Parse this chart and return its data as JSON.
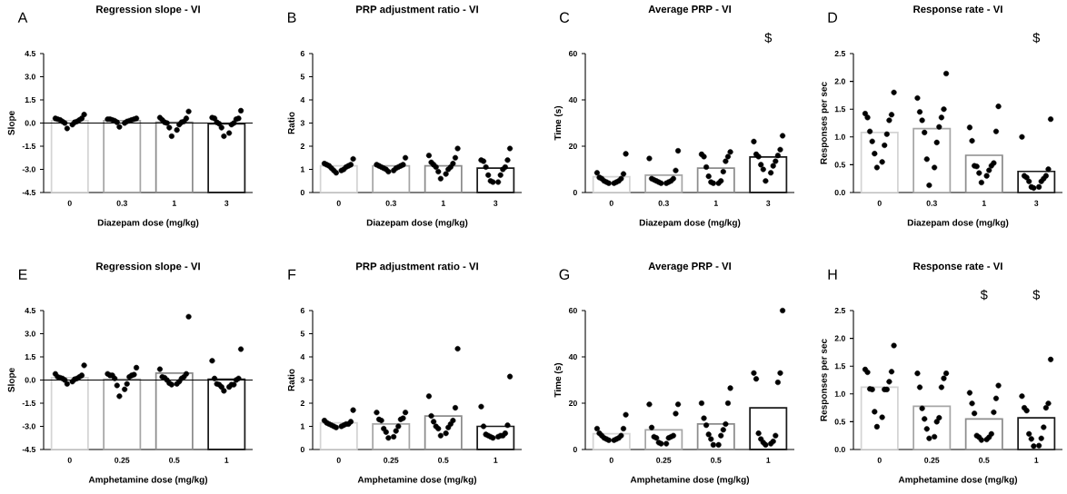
{
  "chart_data": [
    {
      "type": "bar",
      "title": "Regression slope - VI",
      "xlabel": "Diazepam dose (mg/kg)",
      "ylabel": "Slope",
      "categories": [
        "0",
        "0.3",
        "1",
        "3"
      ],
      "ylim": [
        -4.5,
        4.5
      ],
      "yticks": [
        {
          "value": -4.5,
          "label": "-4.5"
        },
        {
          "value": -3,
          "label": "-3.0"
        },
        {
          "value": -1.5,
          "label": "-1.5"
        },
        {
          "value": 0,
          "label": "0.0"
        },
        {
          "value": 1.5,
          "label": "1.5"
        },
        {
          "value": 3,
          "label": "3.0"
        },
        {
          "value": 4.5,
          "label": "4.5"
        }
      ],
      "marker": "circle",
      "annotations": [
        "A"
      ],
      "ref_lines": [
        {
          "axis": "y",
          "value": 0
        }
      ],
      "series": [
        {
          "colors": [
            "#d4d4d4",
            "#a6a6a6",
            "#8c8c8c",
            "#1a1a1a"
          ],
          "base": [
            -4.5,
            -4.5,
            -4.5,
            -4.5
          ],
          "values": [
            4.65,
            4.65,
            4.55,
            4.45
          ]
        },
        {
          "type": "scatter",
          "color": "#000000",
          "x": [
            "0",
            "0",
            "0",
            "0",
            "0",
            "0",
            "0",
            "0",
            "0",
            "0",
            "0",
            "0",
            "0.3",
            "0.3",
            "0.3",
            "0.3",
            "0.3",
            "0.3",
            "0.3",
            "0.3",
            "0.3",
            "0.3",
            "0.3",
            "0.3",
            "1",
            "1",
            "1",
            "1",
            "1",
            "1",
            "1",
            "1",
            "1",
            "1",
            "1",
            "1",
            "3",
            "3",
            "3",
            "3",
            "3",
            "3",
            "3",
            "3",
            "3",
            "3",
            "3",
            "3"
          ],
          "values": [
            0.55,
            0.3,
            0.2,
            0.05,
            0.0,
            -0.35,
            -0.1,
            0.1,
            0.25,
            0.3,
            0.2,
            0.1,
            0.2,
            0.15,
            0.25,
            0.05,
            -0.25,
            0.1,
            0.0,
            0.3,
            0.2,
            0.25,
            0.15,
            0.25,
            0.75,
            0.1,
            0.05,
            0.0,
            -0.85,
            -0.3,
            0.3,
            -0.45,
            -0.1,
            0.35,
            0.2,
            0.05,
            0.3,
            0.05,
            -0.1,
            0.35,
            -0.85,
            -0.3,
            -0.05,
            0.8,
            -0.65,
            0.3,
            0.25,
            0.0
          ]
        }
      ]
    },
    {
      "type": "bar",
      "title": "PRP adjustment ratio - VI",
      "xlabel": "Diazepam dose (mg/kg)",
      "ylabel": "Ratio",
      "categories": [
        "0",
        "0.3",
        "1",
        "3"
      ],
      "ylim": [
        0,
        6
      ],
      "yticks": [
        0,
        1,
        2,
        3,
        4,
        5,
        6
      ],
      "marker": "circle",
      "annotations": [
        "B"
      ],
      "series": [
        {
          "colors": [
            "#d4d4d4",
            "#a6a6a6",
            "#8c8c8c",
            "#1a1a1a"
          ],
          "values": [
            1.15,
            1.15,
            1.15,
            1.05
          ]
        },
        {
          "type": "scatter",
          "color": "#000000",
          "x": [
            "0",
            "0",
            "0",
            "0",
            "0",
            "0",
            "0",
            "0",
            "0",
            "0",
            "0",
            "0",
            "0.3",
            "0.3",
            "0.3",
            "0.3",
            "0.3",
            "0.3",
            "0.3",
            "0.3",
            "0.3",
            "0.3",
            "0.3",
            "0.3",
            "1",
            "1",
            "1",
            "1",
            "1",
            "1",
            "1",
            "1",
            "1",
            "1",
            "1",
            "1",
            "3",
            "3",
            "3",
            "3",
            "3",
            "3",
            "3",
            "3",
            "3",
            "3",
            "3",
            "3"
          ],
          "values": [
            1.15,
            1.25,
            1.05,
            0.95,
            0.85,
            1.2,
            0.95,
            1.45,
            1.2,
            1.1,
            1.15,
            1.0,
            1.2,
            1.15,
            1.05,
            0.95,
            0.9,
            1.5,
            1.05,
            1.1,
            1.0,
            1.15,
            1.2,
            1.1,
            1.9,
            1.1,
            0.8,
            1.0,
            0.6,
            1.5,
            1.25,
            1.6,
            1.3,
            1.2,
            0.9,
            1.1,
            1.4,
            0.75,
            0.45,
            1.9,
            1.1,
            0.45,
            1.35,
            1.0,
            0.75,
            1.4,
            0.5,
            1.1
          ]
        }
      ]
    },
    {
      "type": "bar",
      "title": "Average PRP - VI",
      "xlabel": "Diazepam dose (mg/kg)",
      "ylabel": "Time (s)",
      "categories": [
        "0",
        "0.3",
        "1",
        "3"
      ],
      "ylim": [
        0,
        60
      ],
      "yticks": [
        0,
        20,
        40,
        60
      ],
      "marker": "circle",
      "annotations": [
        "C",
        "$"
      ],
      "series": [
        {
          "colors": [
            "#d4d4d4",
            "#a6a6a6",
            "#8c8c8c",
            "#1a1a1a"
          ],
          "values": [
            6.8,
            7.5,
            10.5,
            15.3
          ]
        },
        {
          "type": "scatter",
          "color": "#000000",
          "x": [
            "0",
            "0",
            "0",
            "0",
            "0",
            "0",
            "0",
            "0",
            "0",
            "0",
            "0",
            "0",
            "0.3",
            "0.3",
            "0.3",
            "0.3",
            "0.3",
            "0.3",
            "0.3",
            "0.3",
            "0.3",
            "0.3",
            "0.3",
            "0.3",
            "1",
            "1",
            "1",
            "1",
            "1",
            "1",
            "1",
            "1",
            "1",
            "1",
            "1",
            "1",
            "3",
            "3",
            "3",
            "3",
            "3",
            "3",
            "3",
            "3",
            "3",
            "3",
            "3",
            "3"
          ],
          "values": [
            6,
            8.5,
            5,
            4.5,
            16.7,
            4,
            4,
            4.5,
            8,
            5,
            6,
            6.5,
            6,
            14.7,
            5,
            4.5,
            4,
            9.5,
            4,
            4.5,
            5,
            18,
            5.5,
            6,
            7,
            15.5,
            5,
            4,
            13.5,
            17.5,
            4,
            4.5,
            15.5,
            9,
            16.5,
            11,
            12,
            22,
            8.5,
            16.5,
            5,
            24.5,
            10,
            13.5,
            18.5,
            11.5,
            16,
            15.5
          ]
        }
      ]
    },
    {
      "type": "bar",
      "title": "Response rate - VI",
      "xlabel": "Diazepam dose (mg/kg)",
      "ylabel": "Responses per sec",
      "categories": [
        "0",
        "0.3",
        "1",
        "3"
      ],
      "ylim": [
        0,
        2.5
      ],
      "yticks": [
        {
          "value": 0,
          "label": "0.0"
        },
        {
          "value": 0.5,
          "label": "0.5"
        },
        {
          "value": 1,
          "label": "1.0"
        },
        {
          "value": 1.5,
          "label": "1.5"
        },
        {
          "value": 2,
          "label": "2.0"
        },
        {
          "value": 2.5,
          "label": "2.5"
        }
      ],
      "marker": "circle",
      "annotations": [
        "D",
        "$"
      ],
      "series": [
        {
          "colors": [
            "#d4d4d4",
            "#a6a6a6",
            "#8c8c8c",
            "#1a1a1a"
          ],
          "values": [
            1.08,
            1.15,
            0.67,
            0.38
          ]
        },
        {
          "type": "scatter",
          "color": "#000000",
          "x": [
            "0",
            "0",
            "0",
            "0",
            "0",
            "0",
            "0",
            "0",
            "0",
            "0",
            "0",
            "0",
            "0.3",
            "0.3",
            "0.3",
            "0.3",
            "0.3",
            "0.3",
            "0.3",
            "0.3",
            "0.3",
            "0.3",
            "0.3",
            "0.3",
            "1",
            "1",
            "1",
            "1",
            "1",
            "1",
            "1",
            "1",
            "1",
            "1",
            "1",
            "1",
            "3",
            "3",
            "3",
            "3",
            "3",
            "3",
            "3",
            "3",
            "3",
            "3",
            "3",
            "3"
          ],
          "values": [
            1.4,
            0.45,
            1.1,
            1.3,
            0.85,
            0.55,
            1.8,
            0.7,
            0.92,
            1.35,
            1.05,
            1.42,
            1.3,
            1.18,
            1.5,
            0.6,
            0.13,
            2.14,
            1.7,
            0.45,
            1.08,
            0.9,
            1.35,
            1.45,
            0.48,
            0.4,
            0.18,
            1.1,
            0.35,
            1.55,
            0.93,
            0.3,
            0.53,
            1.17,
            0.48,
            0.47,
            0.42,
            0.3,
            0.2,
            0.1,
            0.08,
            1.32,
            1.0,
            0.1,
            0.27,
            0.3,
            0.25,
            0.2
          ]
        }
      ]
    },
    {
      "type": "bar",
      "title": "Regression slope - VI",
      "xlabel": "Amphetamine dose (mg/kg)",
      "ylabel": "Slope",
      "categories": [
        "0",
        "0.25",
        "0.5",
        "1"
      ],
      "ylim": [
        -4.5,
        4.5
      ],
      "yticks": [
        {
          "value": -4.5,
          "label": "-4.5"
        },
        {
          "value": -3,
          "label": "-3.0"
        },
        {
          "value": -1.5,
          "label": "-1.5"
        },
        {
          "value": 0,
          "label": "0.0"
        },
        {
          "value": 1.5,
          "label": "1.5"
        },
        {
          "value": 3,
          "label": "3.0"
        },
        {
          "value": 4.5,
          "label": "4.5"
        }
      ],
      "marker": "circle",
      "annotations": [
        "E"
      ],
      "ref_lines": [
        {
          "axis": "y",
          "value": 0
        }
      ],
      "series": [
        {
          "colors": [
            "#d4d4d4",
            "#a6a6a6",
            "#8c8c8c",
            "#1a1a1a"
          ],
          "base": [
            -4.5,
            -4.5,
            -4.5,
            -4.5
          ],
          "values": [
            4.65,
            4.55,
            4.95,
            4.55
          ]
        },
        {
          "type": "scatter",
          "color": "#000000",
          "x": [
            "0",
            "0",
            "0",
            "0",
            "0",
            "0",
            "0",
            "0",
            "0",
            "0",
            "0",
            "0",
            "0.25",
            "0.25",
            "0.25",
            "0.25",
            "0.25",
            "0.25",
            "0.25",
            "0.25",
            "0.25",
            "0.25",
            "0.25",
            "0.25",
            "0.5",
            "0.5",
            "0.5",
            "0.5",
            "0.5",
            "0.5",
            "0.5",
            "0.5",
            "0.5",
            "0.5",
            "0.5",
            "0.5",
            "1",
            "1",
            "1",
            "1",
            "1",
            "1",
            "1",
            "1",
            "1",
            "1",
            "1",
            "1"
          ],
          "values": [
            0.1,
            0.05,
            0.2,
            0.0,
            0.95,
            -0.25,
            -0.1,
            0.15,
            0.3,
            0.4,
            0.2,
            0.1,
            0.4,
            0.3,
            0.2,
            -0.25,
            0.3,
            -1.05,
            0.1,
            -0.6,
            0.3,
            -0.35,
            0.35,
            0.8,
            0.2,
            0.1,
            0.0,
            -0.1,
            -0.25,
            0.7,
            4.1,
            -0.3,
            -0.2,
            0.4,
            0.15,
            0.2,
            -0.3,
            -0.45,
            0.1,
            -0.25,
            1.25,
            -0.7,
            2.0,
            -0.3,
            -0.45,
            0.1,
            -0.3,
            0.0
          ]
        }
      ]
    },
    {
      "type": "bar",
      "title": "PRP adjustment ratio - VI",
      "xlabel": "Amphetamine dose (mg/kg)",
      "ylabel": "Ratio",
      "categories": [
        "0",
        "0.25",
        "0.5",
        "1"
      ],
      "ylim": [
        0,
        6
      ],
      "yticks": [
        0,
        1,
        2,
        3,
        4,
        5,
        6
      ],
      "marker": "circle",
      "annotations": [
        "F"
      ],
      "series": [
        {
          "colors": [
            "#d4d4d4",
            "#a6a6a6",
            "#8c8c8c",
            "#1a1a1a"
          ],
          "values": [
            1.15,
            1.1,
            1.45,
            1.0
          ]
        },
        {
          "type": "scatter",
          "color": "#000000",
          "x": [
            "0",
            "0",
            "0",
            "0",
            "0",
            "0",
            "0",
            "0",
            "0",
            "0",
            "0",
            "0",
            "0.25",
            "0.25",
            "0.25",
            "0.25",
            "0.25",
            "0.25",
            "0.25",
            "0.25",
            "0.25",
            "0.25",
            "0.25",
            "0.25",
            "0.5",
            "0.5",
            "0.5",
            "0.5",
            "0.5",
            "0.5",
            "0.5",
            "0.5",
            "0.5",
            "0.5",
            "0.5",
            "0.5",
            "1",
            "1",
            "1",
            "1",
            "1",
            "1",
            "1",
            "1",
            "1",
            "1",
            "1",
            "1"
          ],
          "values": [
            1.1,
            1.05,
            1.0,
            0.95,
            1.2,
            1.7,
            1.25,
            1.1,
            1.05,
            1.15,
            1.1,
            1.0,
            1.6,
            0.75,
            1.3,
            0.5,
            1.0,
            1.3,
            0.55,
            0.9,
            1.35,
            1.25,
            1.6,
            0.8,
            1.0,
            1.2,
            0.7,
            0.6,
            1.45,
            4.35,
            1.8,
            2.3,
            0.95,
            1.25,
            0.9,
            1.1,
            0.6,
            0.55,
            0.5,
            1.05,
            1.85,
            3.15,
            0.7,
            0.55,
            1.0,
            0.6,
            0.6,
            0.65
          ]
        }
      ]
    },
    {
      "type": "bar",
      "title": "Average PRP - VI",
      "xlabel": "Amphetamine dose (mg/kg)",
      "ylabel": "Time (s)",
      "categories": [
        "0",
        "0.25",
        "0.5",
        "1"
      ],
      "ylim": [
        0,
        60
      ],
      "yticks": [
        0,
        20,
        40,
        60
      ],
      "marker": "circle",
      "annotations": [
        "G"
      ],
      "series": [
        {
          "colors": [
            "#d4d4d4",
            "#a6a6a6",
            "#8c8c8c",
            "#1a1a1a"
          ],
          "values": [
            6.8,
            8.5,
            11,
            18
          ]
        },
        {
          "type": "scatter",
          "color": "#000000",
          "x": [
            "0",
            "0",
            "0",
            "0",
            "0",
            "0",
            "0",
            "0",
            "0",
            "0",
            "0",
            "0",
            "0.25",
            "0.25",
            "0.25",
            "0.25",
            "0.25",
            "0.25",
            "0.25",
            "0.25",
            "0.25",
            "0.25",
            "0.25",
            "0.25",
            "0.5",
            "0.5",
            "0.5",
            "0.5",
            "0.5",
            "0.5",
            "0.5",
            "0.5",
            "0.5",
            "0.5",
            "0.5",
            "0.5",
            "1",
            "1",
            "1",
            "1",
            "1",
            "1",
            "1",
            "1",
            "1",
            "1",
            "1",
            "1"
          ],
          "values": [
            7,
            6,
            5,
            9,
            4.5,
            4,
            15,
            4,
            4.5,
            9,
            5,
            6,
            6,
            5.5,
            5,
            19.5,
            3,
            9.5,
            2.5,
            15.5,
            2.5,
            19.5,
            5,
            5.5,
            6,
            4.5,
            13.5,
            2,
            20,
            26.5,
            20,
            2,
            10.5,
            8.5,
            11,
            6.5,
            4.5,
            2.5,
            7,
            29,
            33,
            2,
            60,
            3,
            30.5,
            6,
            33,
            3.5
          ]
        }
      ]
    },
    {
      "type": "bar",
      "title": "Response rate - VI",
      "xlabel": "Amphetamine dose (mg/kg)",
      "ylabel": "Responses per sec",
      "categories": [
        "0",
        "0.25",
        "0.5",
        "1"
      ],
      "ylim": [
        0,
        2.5
      ],
      "yticks": [
        {
          "value": 0,
          "label": "0.0"
        },
        {
          "value": 0.5,
          "label": "0.5"
        },
        {
          "value": 1,
          "label": "1.0"
        },
        {
          "value": 1.5,
          "label": "1.5"
        },
        {
          "value": 2,
          "label": "2.0"
        },
        {
          "value": 2.5,
          "label": "2.5"
        }
      ],
      "marker": "circle",
      "annotations": [
        "H",
        "$",
        "$"
      ],
      "series": [
        {
          "colors": [
            "#d4d4d4",
            "#a6a6a6",
            "#8c8c8c",
            "#1a1a1a"
          ],
          "values": [
            1.12,
            0.78,
            0.55,
            0.57
          ]
        },
        {
          "type": "scatter",
          "color": "#000000",
          "x": [
            "0",
            "0",
            "0",
            "0",
            "0",
            "0",
            "0",
            "0",
            "0",
            "0",
            "0",
            "0",
            "0.25",
            "0.25",
            "0.25",
            "0.25",
            "0.25",
            "0.25",
            "0.25",
            "0.25",
            "0.25",
            "0.25",
            "0.25",
            "0.25",
            "0.5",
            "0.5",
            "0.5",
            "0.5",
            "0.5",
            "0.5",
            "0.5",
            "0.5",
            "0.5",
            "0.5",
            "0.5",
            "0.5",
            "1",
            "1",
            "1",
            "1",
            "1",
            "1",
            "1",
            "1",
            "1",
            "1",
            "1",
            "1"
          ],
          "values": [
            1.22,
            1.4,
            0.68,
            1.08,
            0.41,
            1.39,
            1.08,
            0.58,
            1.87,
            1.08,
            1.44,
            1.09,
            1.37,
            0.55,
            0.5,
            1.28,
            0.2,
            1.12,
            0.74,
            0.23,
            1.12,
            0.57,
            1.37,
            0.37,
            0.25,
            0.83,
            0.22,
            0.67,
            0.17,
            1.15,
            0.18,
            0.65,
            0.92,
            0.22,
            1.02,
            0.28,
            0.2,
            0.75,
            0.4,
            0.07,
            0.7,
            1.62,
            0.06,
            0.96,
            0.28,
            0.75,
            0.19,
            0.83
          ]
        }
      ]
    }
  ]
}
